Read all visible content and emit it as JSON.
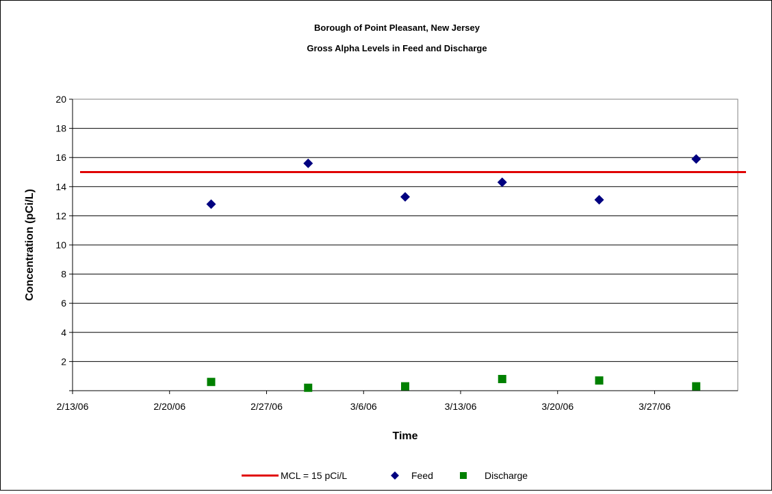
{
  "chart_data": {
    "type": "scatter",
    "title": "Borough of Point Pleasant, New Jersey",
    "subtitle": "Gross Alpha Levels in Feed and Discharge",
    "xlabel": "Time",
    "ylabel": "Concentration (pCi/L)",
    "xlim": [
      "2/13/06",
      "4/2/06"
    ],
    "ylim": [
      0,
      20
    ],
    "x_ticks": [
      "2/13/06",
      "2/20/06",
      "2/27/06",
      "3/6/06",
      "3/13/06",
      "3/20/06",
      "3/27/06"
    ],
    "y_ticks": [
      2,
      4,
      6,
      8,
      10,
      12,
      14,
      16,
      18,
      20
    ],
    "grid": "horizontal",
    "legend_position": "bottom",
    "reference_line": {
      "name": "MCL = 15 pCi/L",
      "value": 15,
      "color": "#e00000"
    },
    "series": [
      {
        "name": "Feed",
        "marker": "diamond",
        "color": "#000080",
        "points": [
          {
            "x": "2/23/06",
            "y": 12.8
          },
          {
            "x": "3/2/06",
            "y": 15.6
          },
          {
            "x": "3/9/06",
            "y": 13.3
          },
          {
            "x": "3/16/06",
            "y": 14.3
          },
          {
            "x": "3/23/06",
            "y": 13.1
          },
          {
            "x": "3/30/06",
            "y": 15.9
          }
        ]
      },
      {
        "name": "Discharge",
        "marker": "square",
        "color": "#008000",
        "points": [
          {
            "x": "2/23/06",
            "y": 0.6
          },
          {
            "x": "3/2/06",
            "y": 0.2
          },
          {
            "x": "3/9/06",
            "y": 0.3
          },
          {
            "x": "3/16/06",
            "y": 0.8
          },
          {
            "x": "3/23/06",
            "y": 0.7
          },
          {
            "x": "3/30/06",
            "y": 0.3
          }
        ]
      }
    ]
  }
}
